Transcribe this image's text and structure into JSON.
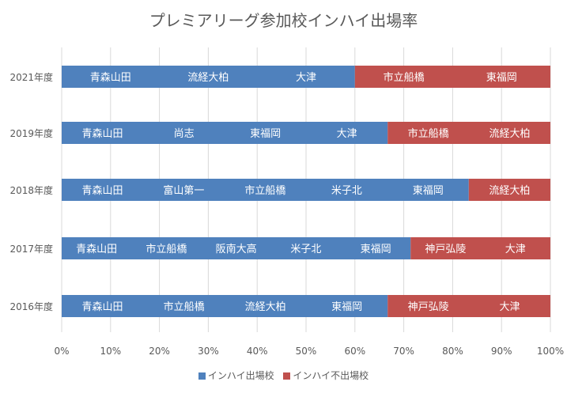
{
  "chart_data": {
    "type": "bar",
    "orientation": "horizontal",
    "stacked": true,
    "title": "プレミアリーグ参加校インハイ出場率",
    "xlim": [
      0,
      100
    ],
    "xticks": [
      "0%",
      "10%",
      "20%",
      "30%",
      "40%",
      "50%",
      "60%",
      "70%",
      "80%",
      "90%",
      "100%"
    ],
    "grid": true,
    "legend_position": "bottom",
    "categories": [
      "2021年度",
      "2019年度",
      "2018年度",
      "2017年度",
      "2016年度"
    ],
    "series": [
      {
        "name": "インハイ出場校",
        "color": "#4f81bd",
        "values": [
          60,
          66.7,
          83.3,
          71.4,
          66.7
        ],
        "school_labels": [
          [
            "青森山田",
            "流経大柏",
            "大津"
          ],
          [
            "青森山田",
            "尚志",
            "東福岡",
            "大津"
          ],
          [
            "青森山田",
            "富山第一",
            "市立船橋",
            "米子北",
            "東福岡"
          ],
          [
            "青森山田",
            "市立船橋",
            "阪南大高",
            "米子北",
            "東福岡"
          ],
          [
            "青森山田",
            "市立船橋",
            "流経大柏",
            "東福岡"
          ]
        ]
      },
      {
        "name": "インハイ不出場校",
        "color": "#c0504d",
        "values": [
          40,
          33.3,
          16.7,
          28.6,
          33.3
        ],
        "school_labels": [
          [
            "市立船橋",
            "東福岡"
          ],
          [
            "市立船橋",
            "流経大柏"
          ],
          [
            "流経大柏"
          ],
          [
            "神戸弘陵",
            "大津"
          ],
          [
            "神戸弘陵",
            "大津"
          ]
        ]
      }
    ]
  }
}
